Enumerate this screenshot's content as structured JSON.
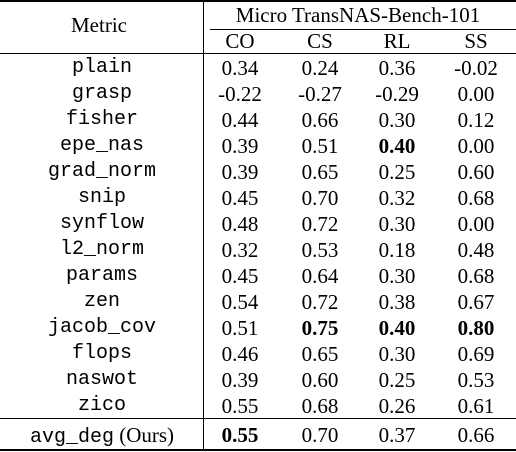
{
  "table": {
    "header": {
      "metric_label": "Metric",
      "group_label": "Micro TransNAS-Bench-101",
      "columns": [
        "CO",
        "CS",
        "RL",
        "SS"
      ]
    },
    "rows": [
      {
        "metric": "plain",
        "values": [
          "0.34",
          "0.24",
          "0.36",
          "-0.02"
        ],
        "bold": [
          false,
          false,
          false,
          false
        ]
      },
      {
        "metric": "grasp",
        "values": [
          "-0.22",
          "-0.27",
          "-0.29",
          "0.00"
        ],
        "bold": [
          false,
          false,
          false,
          false
        ]
      },
      {
        "metric": "fisher",
        "values": [
          "0.44",
          "0.66",
          "0.30",
          "0.12"
        ],
        "bold": [
          false,
          false,
          false,
          false
        ]
      },
      {
        "metric": "epe_nas",
        "values": [
          "0.39",
          "0.51",
          "0.40",
          "0.00"
        ],
        "bold": [
          false,
          false,
          true,
          false
        ]
      },
      {
        "metric": "grad_norm",
        "values": [
          "0.39",
          "0.65",
          "0.25",
          "0.60"
        ],
        "bold": [
          false,
          false,
          false,
          false
        ]
      },
      {
        "metric": "snip",
        "values": [
          "0.45",
          "0.70",
          "0.32",
          "0.68"
        ],
        "bold": [
          false,
          false,
          false,
          false
        ]
      },
      {
        "metric": "synflow",
        "values": [
          "0.48",
          "0.72",
          "0.30",
          "0.00"
        ],
        "bold": [
          false,
          false,
          false,
          false
        ]
      },
      {
        "metric": "l2_norm",
        "values": [
          "0.32",
          "0.53",
          "0.18",
          "0.48"
        ],
        "bold": [
          false,
          false,
          false,
          false
        ]
      },
      {
        "metric": "params",
        "values": [
          "0.45",
          "0.64",
          "0.30",
          "0.68"
        ],
        "bold": [
          false,
          false,
          false,
          false
        ]
      },
      {
        "metric": "zen",
        "values": [
          "0.54",
          "0.72",
          "0.38",
          "0.67"
        ],
        "bold": [
          false,
          false,
          false,
          false
        ]
      },
      {
        "metric": "jacob_cov",
        "values": [
          "0.51",
          "0.75",
          "0.40",
          "0.80"
        ],
        "bold": [
          false,
          true,
          true,
          true
        ]
      },
      {
        "metric": "flops",
        "values": [
          "0.46",
          "0.65",
          "0.30",
          "0.69"
        ],
        "bold": [
          false,
          false,
          false,
          false
        ]
      },
      {
        "metric": "naswot",
        "values": [
          "0.39",
          "0.60",
          "0.25",
          "0.53"
        ],
        "bold": [
          false,
          false,
          false,
          false
        ]
      },
      {
        "metric": "zico",
        "values": [
          "0.55",
          "0.68",
          "0.26",
          "0.61"
        ],
        "bold": [
          false,
          false,
          false,
          false
        ]
      }
    ],
    "ours": {
      "metric": "avg_deg",
      "suffix": " (Ours)",
      "values": [
        "0.55",
        "0.70",
        "0.37",
        "0.66"
      ],
      "bold": [
        true,
        false,
        false,
        false
      ]
    }
  }
}
